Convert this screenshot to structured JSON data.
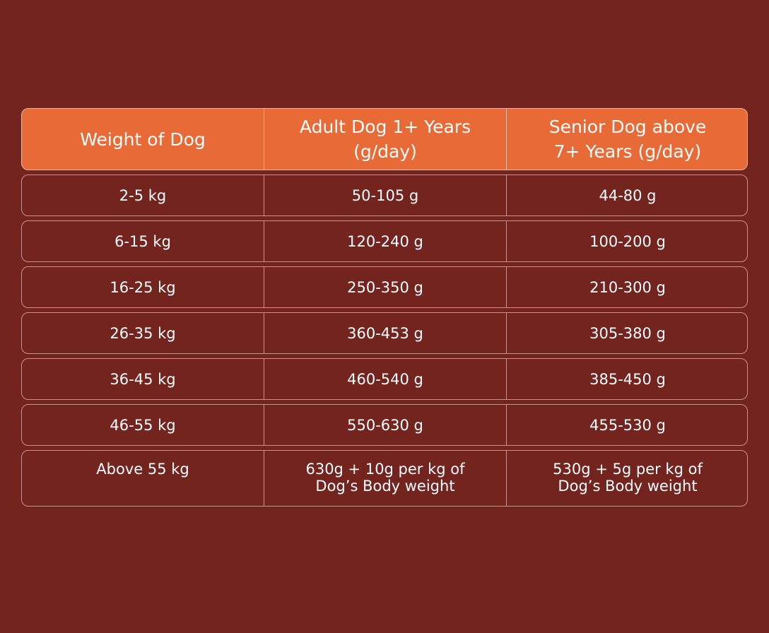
{
  "chart_data": {
    "type": "table",
    "columns": [
      "Weight of Dog",
      "Adult Dog 1+ Years (g/day)",
      "Senior Dog above 7+ Years (g/day)"
    ],
    "header": {
      "col1": "Weight of Dog",
      "col2_line1": "Adult Dog 1+ Years",
      "col2_line2": "(g/day)",
      "col3_line1": "Senior Dog above",
      "col3_line2": "7+ Years (g/day)"
    },
    "rows": [
      {
        "weight": "2-5 kg",
        "adult": "50-105 g",
        "senior": "44-80 g"
      },
      {
        "weight": "6-15 kg",
        "adult": "120-240 g",
        "senior": "100-200 g"
      },
      {
        "weight": "16-25 kg",
        "adult": "250-350 g",
        "senior": "210-300 g"
      },
      {
        "weight": "26-35 kg",
        "adult": "360-453 g",
        "senior": "305-380 g"
      },
      {
        "weight": "36-45 kg",
        "adult": "460-540 g",
        "senior": "385-450 g"
      },
      {
        "weight": "46-55 kg",
        "adult": "550-630 g",
        "senior": "455-530 g"
      },
      {
        "weight": "Above 55 kg",
        "adult_line1": "630g + 10g per kg of",
        "adult_line2": "Dog’s Body weight",
        "senior_line1": "530g + 5g per kg of",
        "senior_line2": "Dog’s Body weight"
      }
    ]
  },
  "colors": {
    "background": "#73241e",
    "header": "#e86a36",
    "text": "#ffffff"
  }
}
